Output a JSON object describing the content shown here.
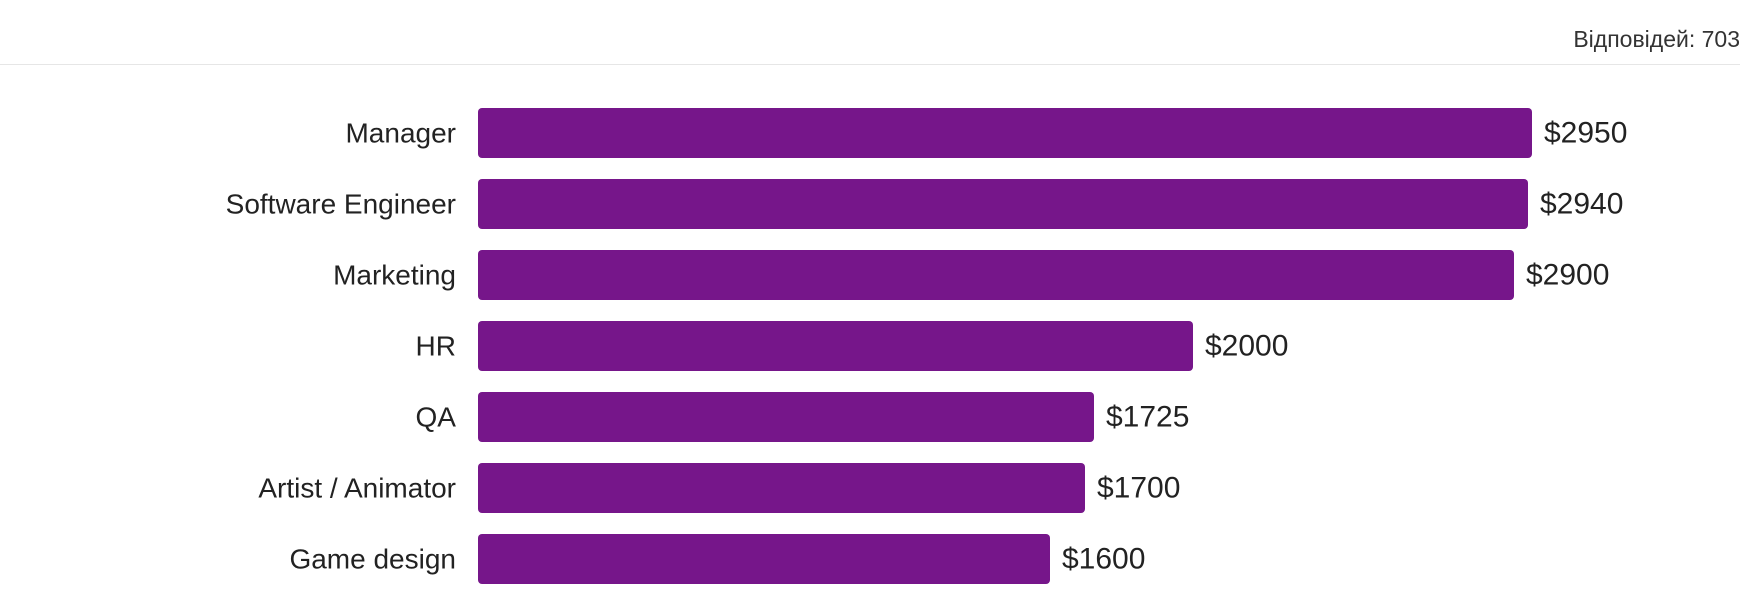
{
  "header": {
    "responses": "Відповідей: 703"
  },
  "chart_data": {
    "type": "bar",
    "orientation": "horizontal",
    "categories": [
      "Manager",
      "Software Engineer",
      "Marketing",
      "HR",
      "QA",
      "Artist / Animator",
      "Game design"
    ],
    "values": [
      2950,
      2940,
      2900,
      2000,
      1725,
      1700,
      1600
    ],
    "value_labels": [
      "$2950",
      "$2940",
      "$2900",
      "$2000",
      "$1725",
      "$1700",
      "$1600"
    ],
    "title": "",
    "xlabel": "",
    "ylabel": "",
    "xlim": [
      0,
      2950
    ],
    "grid": false,
    "legend": "none",
    "bar_color": "#76168a"
  }
}
